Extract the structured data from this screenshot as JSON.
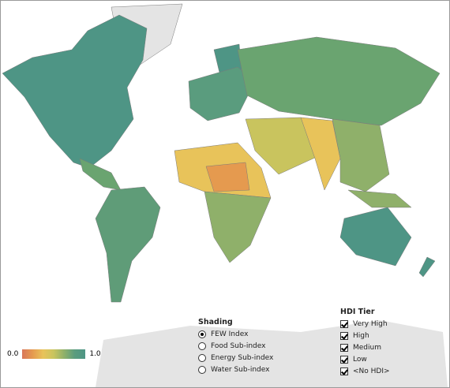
{
  "legend": {
    "min_label": "0.0",
    "max_label": "1.0"
  },
  "shading": {
    "title": "Shading",
    "options": [
      "FEW Index",
      "Food Sub-index",
      "Energy Sub-index",
      "Water Sub-index"
    ],
    "selected": 0
  },
  "hdi_tier": {
    "title": "HDI Tier",
    "options": [
      "Very High",
      "High",
      "Medium",
      "Low",
      "<No HDI>"
    ],
    "checked": [
      true,
      true,
      true,
      true,
      true
    ]
  }
}
